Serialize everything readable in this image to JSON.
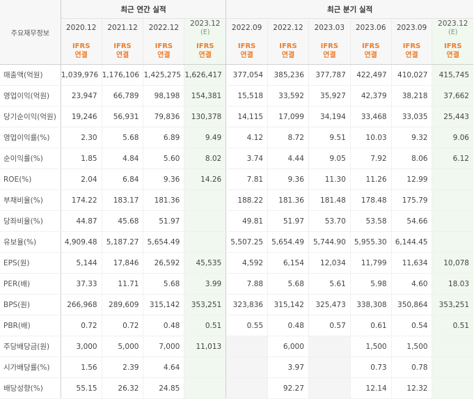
{
  "header": {
    "corner_label": "주요재무정보",
    "annual_group": "최근 연간 실적",
    "quarterly_group": "최근 분기 실적",
    "columns": [
      {
        "period": "2020.12",
        "est": "",
        "ifrs": "IFRS",
        "basis": "연결"
      },
      {
        "period": "2021.12",
        "est": "",
        "ifrs": "IFRS",
        "basis": "연결"
      },
      {
        "period": "2022.12",
        "est": "",
        "ifrs": "IFRS",
        "basis": "연결"
      },
      {
        "period": "2023.12",
        "est": "(E)",
        "ifrs": "IFRS",
        "basis": "연결"
      },
      {
        "period": "2022.09",
        "est": "",
        "ifrs": "IFRS",
        "basis": "연결"
      },
      {
        "period": "2022.12",
        "est": "",
        "ifrs": "IFRS",
        "basis": "연결"
      },
      {
        "period": "2023.03",
        "est": "",
        "ifrs": "IFRS",
        "basis": "연결"
      },
      {
        "period": "2023.06",
        "est": "",
        "ifrs": "IFRS",
        "basis": "연결"
      },
      {
        "period": "2023.09",
        "est": "",
        "ifrs": "IFRS",
        "basis": "연결"
      },
      {
        "period": "2023.12",
        "est": "(E)",
        "ifrs": "IFRS",
        "basis": "연결"
      }
    ]
  },
  "rows": [
    {
      "label": "매출액(억원)",
      "values": [
        "1,039,976",
        "1,176,106",
        "1,425,275",
        "1,626,417",
        "377,054",
        "385,236",
        "377,787",
        "422,497",
        "410,027",
        "415,745"
      ]
    },
    {
      "label": "영업이익(억원)",
      "values": [
        "23,947",
        "66,789",
        "98,198",
        "154,381",
        "15,518",
        "33,592",
        "35,927",
        "42,379",
        "38,218",
        "37,662"
      ]
    },
    {
      "label": "당기순이익(억원)",
      "values": [
        "19,246",
        "56,931",
        "79,836",
        "130,378",
        "14,115",
        "17,099",
        "34,194",
        "33,468",
        "33,035",
        "25,443"
      ]
    },
    {
      "label": "영업이익률(%)",
      "values": [
        "2.30",
        "5.68",
        "6.89",
        "9.49",
        "4.12",
        "8.72",
        "9.51",
        "10.03",
        "9.32",
        "9.06"
      ]
    },
    {
      "label": "순이익률(%)",
      "values": [
        "1.85",
        "4.84",
        "5.60",
        "8.02",
        "3.74",
        "4.44",
        "9.05",
        "7.92",
        "8.06",
        "6.12"
      ]
    },
    {
      "label": "ROE(%)",
      "values": [
        "2.04",
        "6.84",
        "9.36",
        "14.26",
        "7.81",
        "9.36",
        "11.30",
        "11.26",
        "12.99",
        ""
      ]
    },
    {
      "label": "부채비율(%)",
      "values": [
        "174.22",
        "183.17",
        "181.36",
        "",
        "188.22",
        "181.36",
        "181.48",
        "178.48",
        "175.79",
        ""
      ]
    },
    {
      "label": "당좌비율(%)",
      "values": [
        "44.87",
        "45.68",
        "51.97",
        "",
        "49.81",
        "51.97",
        "53.70",
        "53.58",
        "54.66",
        ""
      ]
    },
    {
      "label": "유보율(%)",
      "values": [
        "4,909.48",
        "5,187.27",
        "5,654.49",
        "",
        "5,507.25",
        "5,654.49",
        "5,744.90",
        "5,955.30",
        "6,144.45",
        ""
      ]
    },
    {
      "label": "EPS(원)",
      "values": [
        "5,144",
        "17,846",
        "26,592",
        "45,535",
        "4,592",
        "6,154",
        "12,034",
        "11,799",
        "11,634",
        "10,078"
      ]
    },
    {
      "label": "PER(배)",
      "values": [
        "37.33",
        "11.71",
        "5.68",
        "3.99",
        "7.88",
        "5.68",
        "5.61",
        "5.98",
        "4.60",
        "18.03"
      ]
    },
    {
      "label": "BPS(원)",
      "values": [
        "266,968",
        "289,609",
        "315,142",
        "353,251",
        "323,836",
        "315,142",
        "325,473",
        "338,308",
        "350,864",
        "353,251"
      ]
    },
    {
      "label": "PBR(배)",
      "values": [
        "0.72",
        "0.72",
        "0.48",
        "0.51",
        "0.55",
        "0.48",
        "0.57",
        "0.61",
        "0.54",
        "0.51"
      ]
    },
    {
      "label": "주당배당금(원)",
      "values": [
        "3,000",
        "5,000",
        "7,000",
        "11,013",
        "",
        "6,000",
        "",
        "1,500",
        "1,500",
        ""
      ]
    },
    {
      "label": "시가배당률(%)",
      "values": [
        "1.56",
        "2.39",
        "4.64",
        "",
        "",
        "3.97",
        "",
        "0.73",
        "0.78",
        ""
      ]
    },
    {
      "label": "배당성향(%)",
      "values": [
        "55.15",
        "26.32",
        "24.85",
        "",
        "",
        "92.27",
        "",
        "12.14",
        "12.32",
        ""
      ]
    }
  ]
}
